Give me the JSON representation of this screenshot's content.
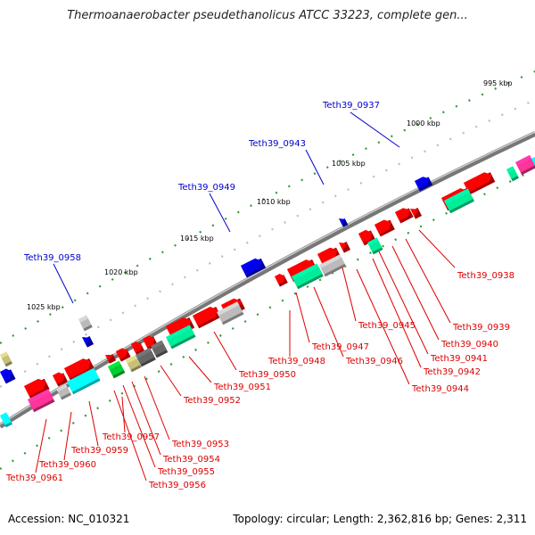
{
  "title": "Thermoanaerobacter pseudethanolicus ATCC 33223, complete gen...",
  "footer": {
    "accession": "Accession: NC_010321",
    "topology": "Topology: circular; Length: 2,362,816 bp; Genes: 2,311"
  },
  "colors": {
    "red": "#ff0000",
    "blue": "#0000ee",
    "gray": "#bbbbbb",
    "darkgray": "#666666",
    "cyan": "#00ffff",
    "magenta": "#ff3399",
    "green": "#00cc33",
    "sea": "#00ee99",
    "khaki": "#c8c07a",
    "label_red": "#dd0000",
    "label_blue": "#0000cc",
    "tick_green": "#339933"
  },
  "ticks": [
    {
      "label": "995 kbp"
    },
    {
      "label": "1000 kbp"
    },
    {
      "label": "1005 kbp"
    },
    {
      "label": "1010 kbp"
    },
    {
      "label": "1015 kbp"
    },
    {
      "label": "1020 kbp"
    },
    {
      "label": "1025 kbp"
    }
  ],
  "labels_top": [
    {
      "text": "Teth39_0937"
    },
    {
      "text": "Teth39_0943"
    },
    {
      "text": "Teth39_0949"
    },
    {
      "text": "Teth39_0958"
    }
  ],
  "labels_bottom": [
    {
      "text": "Teth39_0938"
    },
    {
      "text": "Teth39_0939"
    },
    {
      "text": "Teth39_0940"
    },
    {
      "text": "Teth39_0941"
    },
    {
      "text": "Teth39_0942"
    },
    {
      "text": "Teth39_0944"
    },
    {
      "text": "Teth39_0945"
    },
    {
      "text": "Teth39_0946"
    },
    {
      "text": "Teth39_0947"
    },
    {
      "text": "Teth39_0948"
    },
    {
      "text": "Teth39_0950"
    },
    {
      "text": "Teth39_0951"
    },
    {
      "text": "Teth39_0952"
    },
    {
      "text": "Teth39_0953"
    },
    {
      "text": "Teth39_0954"
    },
    {
      "text": "Teth39_0955"
    },
    {
      "text": "Teth39_0956"
    },
    {
      "text": "Teth39_0957"
    },
    {
      "text": "Teth39_0959"
    },
    {
      "text": "Teth39_0960"
    },
    {
      "text": "Teth39_0961"
    }
  ]
}
